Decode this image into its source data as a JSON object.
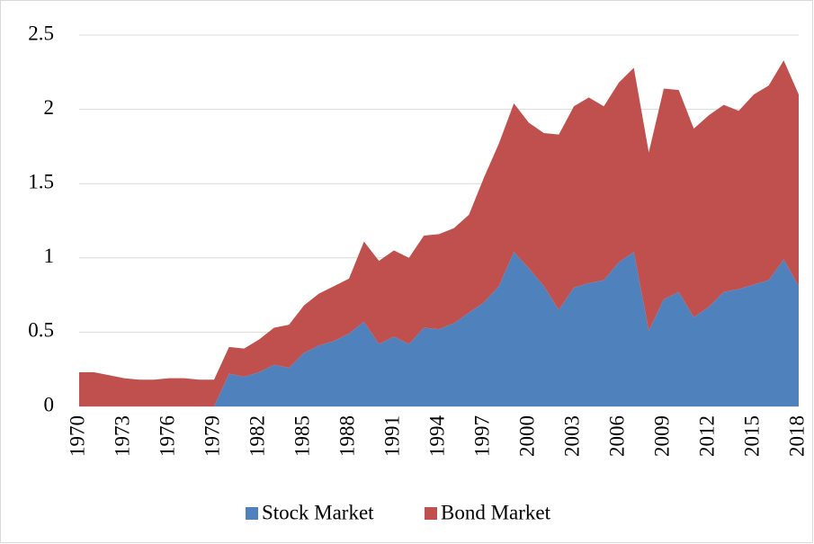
{
  "chart_data": {
    "type": "stacked_area",
    "categories": [
      "1970",
      null,
      null,
      "1973",
      null,
      null,
      "1976",
      null,
      null,
      "1979",
      null,
      null,
      "1982",
      null,
      null,
      "1985",
      null,
      null,
      "1988",
      null,
      null,
      "1991",
      null,
      null,
      "1994",
      null,
      null,
      "1997",
      null,
      null,
      "2000",
      null,
      null,
      "2003",
      null,
      null,
      "2006",
      null,
      null,
      "2009",
      null,
      null,
      "2012",
      null,
      null,
      "2015",
      null,
      null,
      "2018"
    ],
    "series": [
      {
        "name": "Stock Market",
        "color": "#4f81bd",
        "values": [
          0,
          0,
          0,
          0,
          0,
          0,
          0,
          0,
          0,
          0,
          0.22,
          0.2,
          0.23,
          0.28,
          0.26,
          0.36,
          0.41,
          0.44,
          0.49,
          0.57,
          0.42,
          0.47,
          0.42,
          0.53,
          0.52,
          0.56,
          0.63,
          0.7,
          0.81,
          1.04,
          0.93,
          0.81,
          0.65,
          0.8,
          0.83,
          0.85,
          0.97,
          1.04,
          0.51,
          0.72,
          0.77,
          0.6,
          0.67,
          0.77,
          0.79,
          0.82,
          0.85,
          0.99,
          0.81
        ]
      },
      {
        "name": "Bond Market",
        "color": "#c0504d",
        "values": [
          0.23,
          0.23,
          0.21,
          0.19,
          0.18,
          0.18,
          0.19,
          0.19,
          0.18,
          0.18,
          0.18,
          0.19,
          0.22,
          0.25,
          0.29,
          0.32,
          0.35,
          0.37,
          0.37,
          0.54,
          0.56,
          0.58,
          0.58,
          0.62,
          0.64,
          0.64,
          0.66,
          0.84,
          0.96,
          1.0,
          0.98,
          1.03,
          1.18,
          1.22,
          1.25,
          1.17,
          1.21,
          1.24,
          1.2,
          1.42,
          1.36,
          1.27,
          1.29,
          1.26,
          1.2,
          1.28,
          1.31,
          1.34,
          1.29
        ]
      }
    ],
    "ylim": [
      0,
      2.5
    ],
    "yticks": [
      0,
      0.5,
      1,
      1.5,
      2,
      2.5
    ],
    "grid": true,
    "legend": "bottom"
  }
}
